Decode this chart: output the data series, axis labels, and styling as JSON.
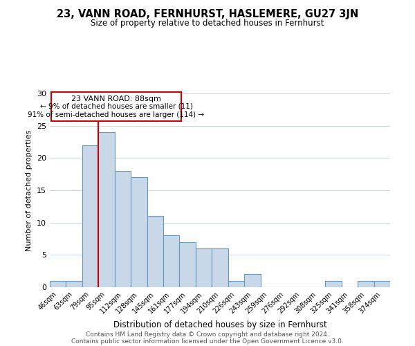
{
  "title": "23, VANN ROAD, FERNHURST, HASLEMERE, GU27 3JN",
  "subtitle": "Size of property relative to detached houses in Fernhurst",
  "xlabel": "Distribution of detached houses by size in Fernhurst",
  "ylabel": "Number of detached properties",
  "footer_line1": "Contains HM Land Registry data © Crown copyright and database right 2024.",
  "footer_line2": "Contains public sector information licensed under the Open Government Licence v3.0.",
  "annotation_title": "23 VANN ROAD: 88sqm",
  "annotation_line1": "← 9% of detached houses are smaller (11)",
  "annotation_line2": "91% of semi-detached houses are larger (114) →",
  "bar_labels": [
    "46sqm",
    "63sqm",
    "79sqm",
    "95sqm",
    "112sqm",
    "128sqm",
    "145sqm",
    "161sqm",
    "177sqm",
    "194sqm",
    "210sqm",
    "226sqm",
    "243sqm",
    "259sqm",
    "276sqm",
    "292sqm",
    "308sqm",
    "325sqm",
    "341sqm",
    "358sqm",
    "374sqm"
  ],
  "bar_values": [
    1,
    1,
    22,
    24,
    18,
    17,
    11,
    8,
    7,
    6,
    6,
    1,
    2,
    0,
    0,
    0,
    0,
    1,
    0,
    1,
    1
  ],
  "bar_color": "#c8d8e8",
  "bar_edge_color": "#6699bb",
  "vline_x": 2.5,
  "vline_color": "#cc0000",
  "ylim": [
    0,
    30
  ],
  "yticks": [
    0,
    5,
    10,
    15,
    20,
    25,
    30
  ],
  "box_color": "#cc0000",
  "background_color": "#ffffff",
  "grid_color": "#c8d8e8"
}
